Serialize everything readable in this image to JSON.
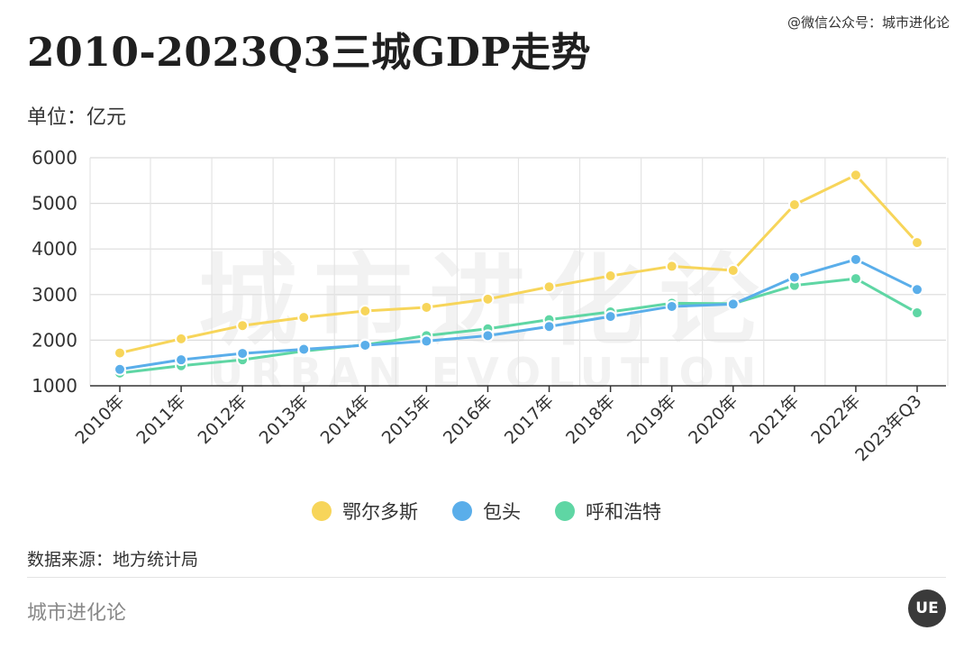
{
  "header": {
    "title": "2010-2023Q3三城GDP走势",
    "wechat": "@微信公众号：城市进化论",
    "unit": "单位：亿元"
  },
  "watermark": {
    "cn": "城市进化论",
    "en": "URBAN EVOLUTION"
  },
  "footer": {
    "source": "数据来源：地方统计局",
    "brand": "城市进化论",
    "logo_text": "UE"
  },
  "chart_data": {
    "type": "line",
    "categories": [
      "2010年",
      "2011年",
      "2012年",
      "2013年",
      "2014年",
      "2015年",
      "2016年",
      "2017年",
      "2018年",
      "2019年",
      "2020年",
      "2021年",
      "2022年",
      "2023年Q3"
    ],
    "ylim": [
      1000,
      6000
    ],
    "yticks": [
      1000,
      2000,
      3000,
      4000,
      5000,
      6000
    ],
    "grid": true,
    "legend_position": "bottom",
    "series": [
      {
        "name": "鄂尔多斯",
        "color": "#f7d55a",
        "values": [
          1720,
          2030,
          2320,
          2500,
          2640,
          2720,
          2900,
          3170,
          3410,
          3620,
          3530,
          4970,
          5620,
          4140
        ]
      },
      {
        "name": "包头",
        "color": "#5aaeea",
        "values": [
          1360,
          1570,
          1710,
          1800,
          1890,
          1980,
          2100,
          2300,
          2520,
          2740,
          2790,
          3380,
          3770,
          3110
        ]
      },
      {
        "name": "呼和浩特",
        "color": "#5fd6a4",
        "values": [
          1280,
          1440,
          1570,
          1760,
          1900,
          2100,
          2250,
          2450,
          2620,
          2810,
          2800,
          3200,
          3350,
          2600
        ]
      }
    ]
  }
}
